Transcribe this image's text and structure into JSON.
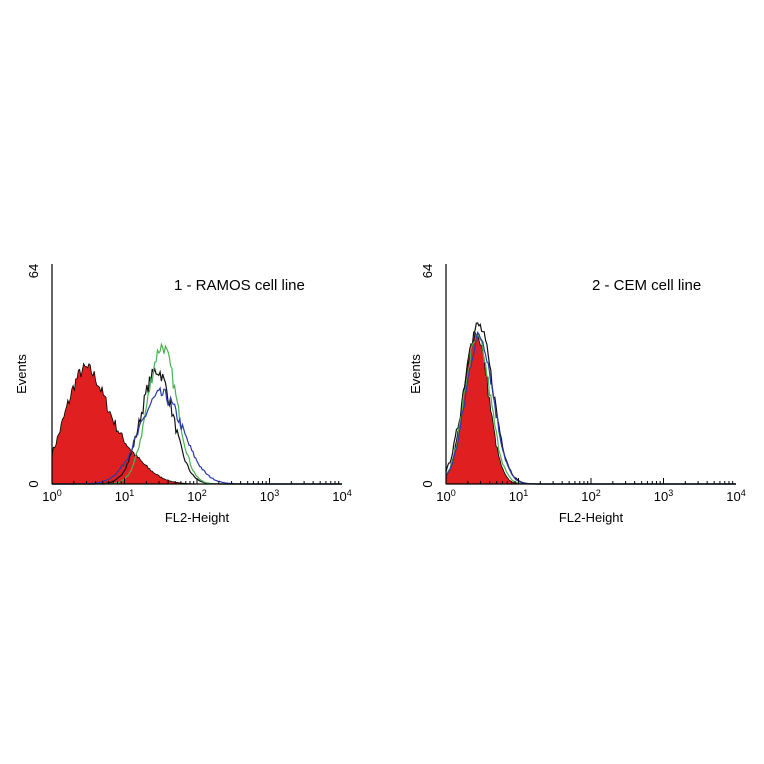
{
  "colors": {
    "isotype_fill": "#e02020",
    "black_trace": "#111111",
    "green_trace": "#4caf50",
    "blue_trace": "#2a3aa8"
  },
  "chart_data": [
    {
      "type": "area",
      "title": "1 - RAMOS cell line",
      "xlabel": "FL2-Height",
      "ylabel": "Events",
      "x_scale": "log",
      "xlim": [
        1,
        10000
      ],
      "ylim": [
        0,
        64
      ],
      "x_ticks": [
        {
          "base": "10",
          "exp": "0",
          "value": 1
        },
        {
          "base": "10",
          "exp": "1",
          "value": 10
        },
        {
          "base": "10",
          "exp": "2",
          "value": 100
        },
        {
          "base": "10",
          "exp": "3",
          "value": 1000
        },
        {
          "base": "10",
          "exp": "4",
          "value": 10000
        }
      ],
      "y_ticks": [
        "0",
        "64"
      ],
      "series": [
        {
          "kind": "filled",
          "color": "#e02020",
          "peak_x": 2.8,
          "peak_y": 32,
          "width": 0.28,
          "extra": [
            {
              "peak_x": 10,
              "peak_y": 8,
              "width": 0.3
            }
          ]
        },
        {
          "kind": "line",
          "color": "#111111",
          "peak_x": 28,
          "peak_y": 33,
          "width": 0.22
        },
        {
          "kind": "line",
          "color": "#4caf50",
          "peak_x": 33,
          "peak_y": 40,
          "width": 0.2
        },
        {
          "kind": "line",
          "color": "#2a3aa8",
          "peak_x": 32,
          "peak_y": 26,
          "width": 0.3
        }
      ]
    },
    {
      "type": "area",
      "title": "2 - CEM cell line",
      "xlabel": "FL2-Height",
      "ylabel": "Events",
      "x_scale": "log",
      "xlim": [
        1,
        10000
      ],
      "ylim": [
        0,
        64
      ],
      "x_ticks": [
        {
          "base": "10",
          "exp": "0",
          "value": 1
        },
        {
          "base": "10",
          "exp": "1",
          "value": 10
        },
        {
          "base": "10",
          "exp": "2",
          "value": 100
        },
        {
          "base": "10",
          "exp": "3",
          "value": 1000
        },
        {
          "base": "10",
          "exp": "4",
          "value": 10000
        }
      ],
      "y_ticks": [
        "0",
        "64"
      ],
      "series": [
        {
          "kind": "filled",
          "color": "#e02020",
          "peak_x": 2.6,
          "peak_y": 44,
          "width": 0.17
        },
        {
          "kind": "line",
          "color": "#111111",
          "peak_x": 2.8,
          "peak_y": 46,
          "width": 0.2
        },
        {
          "kind": "line",
          "color": "#4caf50",
          "peak_x": 2.7,
          "peak_y": 42,
          "width": 0.18
        },
        {
          "kind": "line",
          "color": "#2a3aa8",
          "peak_x": 2.9,
          "peak_y": 43,
          "width": 0.19
        }
      ]
    }
  ]
}
